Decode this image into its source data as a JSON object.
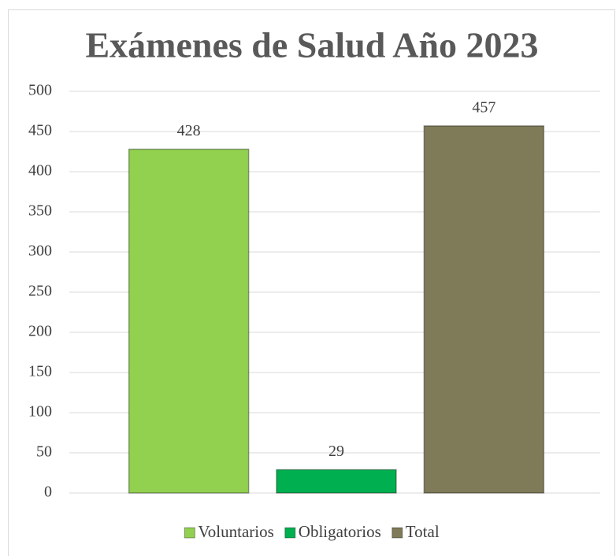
{
  "chart_data": {
    "type": "bar",
    "title": "Exámenes de Salud Año 2023",
    "series": [
      {
        "name": "Voluntarios",
        "color": "#92d050",
        "values": [
          428
        ]
      },
      {
        "name": "Obligatorios",
        "color": "#00b050",
        "values": [
          29
        ]
      },
      {
        "name": "Total",
        "color": "#7f7a58",
        "values": [
          457
        ]
      }
    ],
    "ylim": [
      0,
      500
    ],
    "yticks": [
      0,
      50,
      100,
      150,
      200,
      250,
      300,
      350,
      400,
      450,
      500
    ],
    "grid": true,
    "legend": "bottom"
  }
}
